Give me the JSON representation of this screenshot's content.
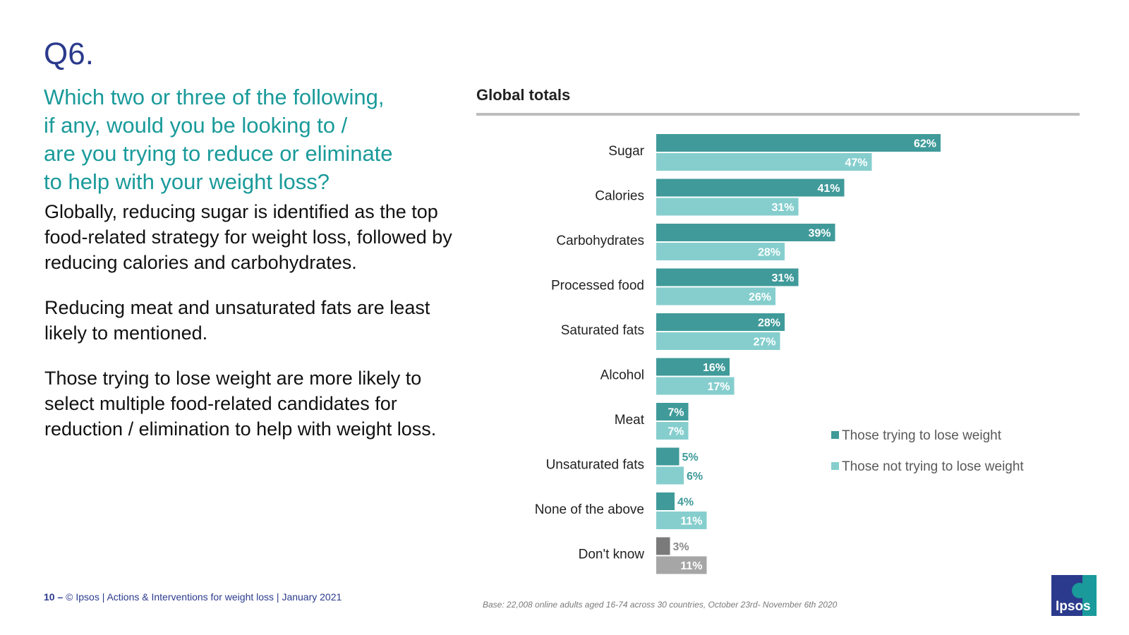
{
  "slide": {
    "qnum": "Q6.",
    "question_lines": [
      "Which two or three of the following,",
      "if any, would you be looking to /",
      "are you trying to reduce or eliminate",
      "to help with your weight loss?"
    ],
    "paragraphs": [
      "Globally, reducing sugar is identified as the top food-related strategy for weight loss, followed by reducing calories and carbohydrates.",
      "Reducing meat and unsaturated fats are least likely to mentioned.",
      "Those trying to lose weight are more likely to select multiple food-related candidates for reduction / elimination to help with weight loss."
    ],
    "footer": {
      "page": "10",
      "dash": "–",
      "text": "© Ipsos | Actions & Interventions for weight loss | January 2021"
    },
    "base_note": "Base: 22,008 online adults aged 16-74 across 30 countries, October 23rd- November 6th 2020",
    "logo_text": "Ipsos"
  },
  "colors": {
    "trying": "#409a9a",
    "not_trying": "#86cece",
    "dk_trying": "#7a7a7a",
    "dk_not_trying": "#a6a6a6",
    "label_outside": "#409a9a",
    "label_outside_dk": "#8a8a8a",
    "text_dark": "#222222",
    "brand_blue": "#2b3a8c",
    "teal_title": "#1a9a9a"
  },
  "chart_data": {
    "type": "bar",
    "orientation": "horizontal",
    "title": "Global totals",
    "categories": [
      "Sugar",
      "Calories",
      "Carbohydrates",
      "Processed food",
      "Saturated fats",
      "Alcohol",
      "Meat",
      "Unsaturated fats",
      "None of the above",
      "Don't know"
    ],
    "series": [
      {
        "name": "Those trying to lose weight",
        "values": [
          62,
          41,
          39,
          31,
          28,
          16,
          7,
          5,
          4,
          3
        ]
      },
      {
        "name": "Those not trying to lose weight",
        "values": [
          47,
          31,
          28,
          26,
          27,
          17,
          7,
          6,
          11,
          11
        ]
      }
    ],
    "value_suffix": "%",
    "xlim": [
      0,
      70
    ],
    "grid": false,
    "legend_position": "right"
  }
}
